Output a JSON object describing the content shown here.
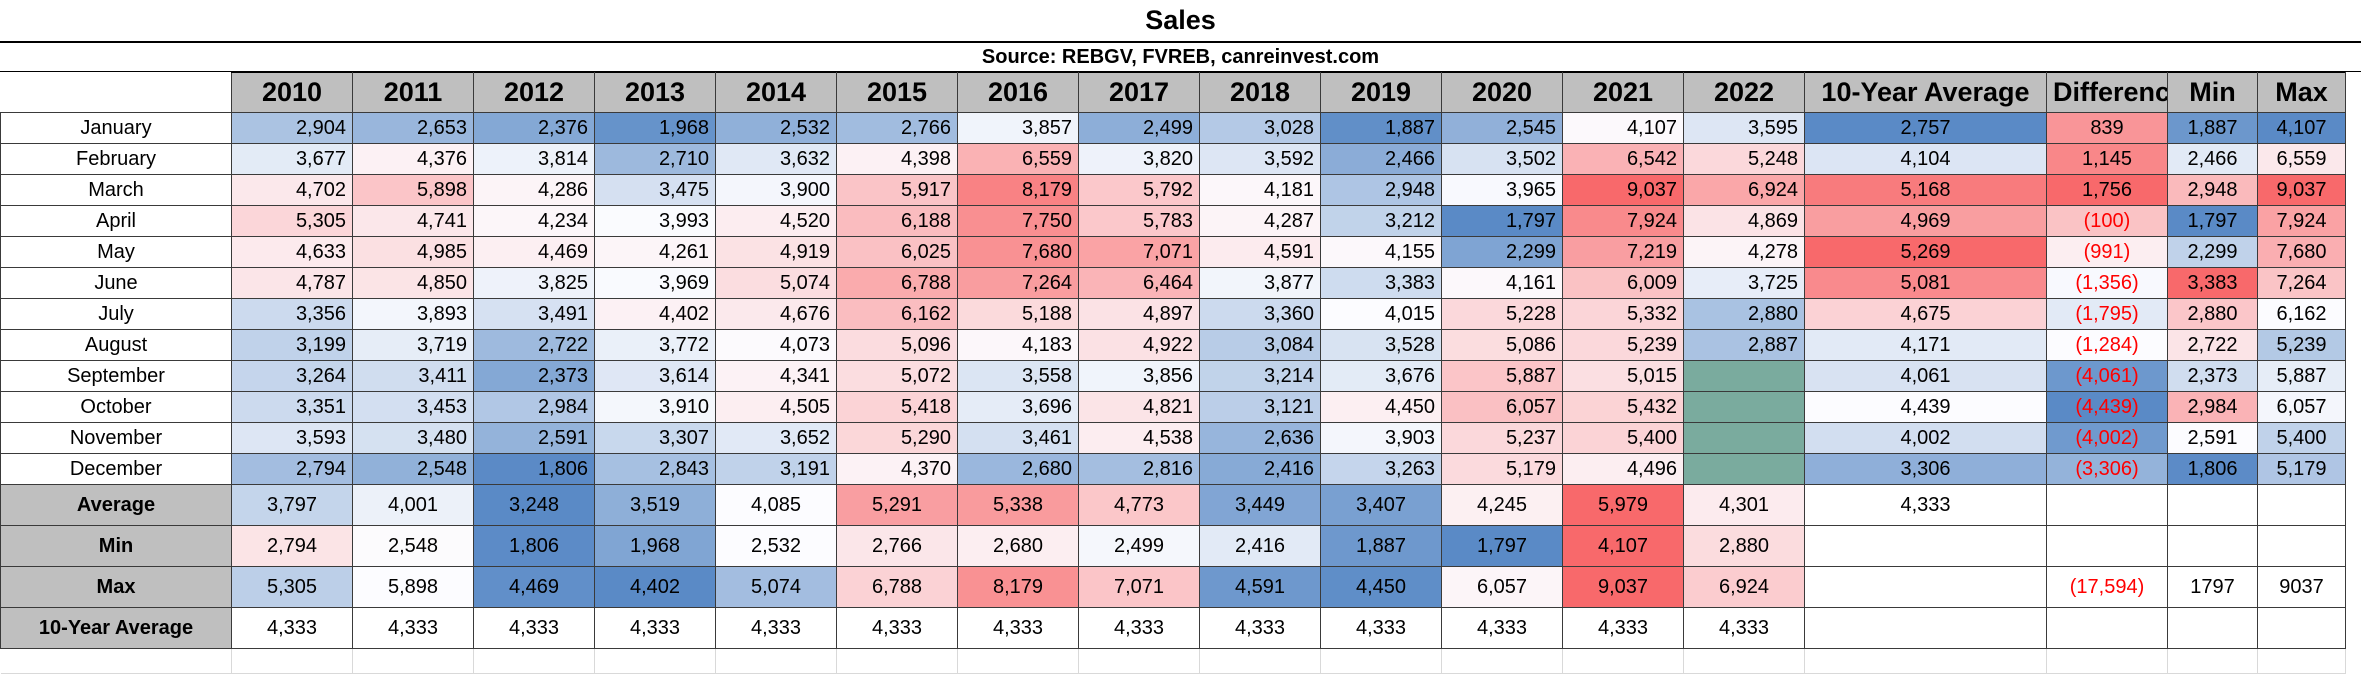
{
  "title": "Sales",
  "subtitle": "Source: REBGV, FVREB, canreinvest.com",
  "headers": [
    "2010",
    "2011",
    "2012",
    "2013",
    "2014",
    "2015",
    "2016",
    "2017",
    "2018",
    "2019",
    "2020",
    "2021",
    "2022",
    "10-Year Average",
    "Difference",
    "Min",
    "Max"
  ],
  "colors": {
    "high": "#f8696b",
    "mid": "#fcfcff",
    "low": "#5a8ac6",
    "empty": "#7aab9e",
    "header": "#bfbfbf",
    "negative": "#ff0000"
  },
  "months": [
    {
      "label": "January",
      "values": [
        "2,904",
        "2,653",
        "2,376",
        "1,968",
        "2,532",
        "2,766",
        "3,857",
        "2,499",
        "3,028",
        "1,887",
        "2,545",
        "4,107",
        "3,595"
      ],
      "avg": "2,757",
      "diff": "839",
      "min": "1,887",
      "max": "4,107"
    },
    {
      "label": "February",
      "values": [
        "3,677",
        "4,376",
        "3,814",
        "2,710",
        "3,632",
        "4,398",
        "6,559",
        "3,820",
        "3,592",
        "2,466",
        "3,502",
        "6,542",
        "5,248"
      ],
      "avg": "4,104",
      "diff": "1,145",
      "min": "2,466",
      "max": "6,559"
    },
    {
      "label": "March",
      "values": [
        "4,702",
        "5,898",
        "4,286",
        "3,475",
        "3,900",
        "5,917",
        "8,179",
        "5,792",
        "4,181",
        "2,948",
        "3,965",
        "9,037",
        "6,924"
      ],
      "avg": "5,168",
      "diff": "1,756",
      "min": "2,948",
      "max": "9,037"
    },
    {
      "label": "April",
      "values": [
        "5,305",
        "4,741",
        "4,234",
        "3,993",
        "4,520",
        "6,188",
        "7,750",
        "5,783",
        "4,287",
        "3,212",
        "1,797",
        "7,924",
        "4,869"
      ],
      "avg": "4,969",
      "diff": "(100)",
      "min": "1,797",
      "max": "7,924"
    },
    {
      "label": "May",
      "values": [
        "4,633",
        "4,985",
        "4,469",
        "4,261",
        "4,919",
        "6,025",
        "7,680",
        "7,071",
        "4,591",
        "4,155",
        "2,299",
        "7,219",
        "4,278"
      ],
      "avg": "5,269",
      "diff": "(991)",
      "min": "2,299",
      "max": "7,680"
    },
    {
      "label": "June",
      "values": [
        "4,787",
        "4,850",
        "3,825",
        "3,969",
        "5,074",
        "6,788",
        "7,264",
        "6,464",
        "3,877",
        "3,383",
        "4,161",
        "6,009",
        "3,725"
      ],
      "avg": "5,081",
      "diff": "(1,356)",
      "min": "3,383",
      "max": "7,264"
    },
    {
      "label": "July",
      "values": [
        "3,356",
        "3,893",
        "3,491",
        "4,402",
        "4,676",
        "6,162",
        "5,188",
        "4,897",
        "3,360",
        "4,015",
        "5,228",
        "5,332",
        "2,880"
      ],
      "avg": "4,675",
      "diff": "(1,795)",
      "min": "2,880",
      "max": "6,162"
    },
    {
      "label": "August",
      "values": [
        "3,199",
        "3,719",
        "2,722",
        "3,772",
        "4,073",
        "5,096",
        "4,183",
        "4,922",
        "3,084",
        "3,528",
        "5,086",
        "5,239",
        "2,887"
      ],
      "avg": "4,171",
      "diff": "(1,284)",
      "min": "2,722",
      "max": "5,239"
    },
    {
      "label": "September",
      "values": [
        "3,264",
        "3,411",
        "2,373",
        "3,614",
        "4,341",
        "5,072",
        "3,558",
        "3,856",
        "3,214",
        "3,676",
        "5,887",
        "5,015",
        ""
      ],
      "avg": "4,061",
      "diff": "(4,061)",
      "min": "2,373",
      "max": "5,887"
    },
    {
      "label": "October",
      "values": [
        "3,351",
        "3,453",
        "2,984",
        "3,910",
        "4,505",
        "5,418",
        "3,696",
        "4,821",
        "3,121",
        "4,450",
        "6,057",
        "5,432",
        ""
      ],
      "avg": "4,439",
      "diff": "(4,439)",
      "min": "2,984",
      "max": "6,057"
    },
    {
      "label": "November",
      "values": [
        "3,593",
        "3,480",
        "2,591",
        "3,307",
        "3,652",
        "5,290",
        "3,461",
        "4,538",
        "2,636",
        "3,903",
        "5,237",
        "5,400",
        ""
      ],
      "avg": "4,002",
      "diff": "(4,002)",
      "min": "2,591",
      "max": "5,400"
    },
    {
      "label": "December",
      "values": [
        "2,794",
        "2,548",
        "1,806",
        "2,843",
        "3,191",
        "4,370",
        "2,680",
        "2,816",
        "2,416",
        "3,263",
        "5,179",
        "4,496",
        ""
      ],
      "avg": "3,306",
      "diff": "(3,306)",
      "min": "1,806",
      "max": "5,179"
    }
  ],
  "summary": [
    {
      "label": "Average",
      "values": [
        "3,797",
        "4,001",
        "3,248",
        "3,519",
        "4,085",
        "5,291",
        "5,338",
        "4,773",
        "3,449",
        "3,407",
        "4,245",
        "5,979",
        "4,301"
      ],
      "avg": "4,333",
      "diff": "",
      "min": "",
      "max": ""
    },
    {
      "label": "Min",
      "values": [
        "2,794",
        "2,548",
        "1,806",
        "1,968",
        "2,532",
        "2,766",
        "2,680",
        "2,499",
        "2,416",
        "1,887",
        "1,797",
        "4,107",
        "2,880"
      ],
      "avg": "",
      "diff": "",
      "min": "",
      "max": ""
    },
    {
      "label": "Max",
      "values": [
        "5,305",
        "5,898",
        "4,469",
        "4,402",
        "5,074",
        "6,788",
        "8,179",
        "7,071",
        "4,591",
        "4,450",
        "6,057",
        "9,037",
        "6,924"
      ],
      "avg": "",
      "diff": "(17,594)",
      "min": "1797",
      "max": "9037"
    },
    {
      "label": "10-Year Average",
      "values": [
        "4,333",
        "4,333",
        "4,333",
        "4,333",
        "4,333",
        "4,333",
        "4,333",
        "4,333",
        "4,333",
        "4,333",
        "4,333",
        "4,333",
        "4,333"
      ],
      "avg": "",
      "diff": "",
      "min": "",
      "max": ""
    }
  ]
}
